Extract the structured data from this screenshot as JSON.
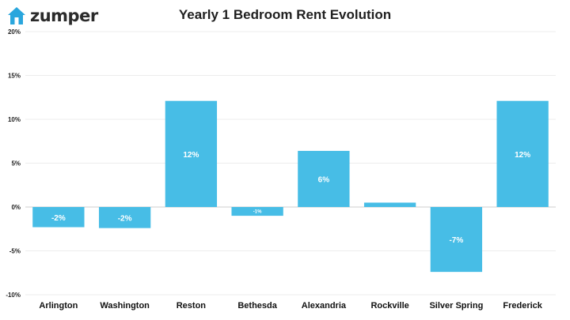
{
  "brand": {
    "name": "zumper",
    "icon": "house-icon",
    "color": "#2aa6dd"
  },
  "chart_data": {
    "type": "bar",
    "title": "Yearly 1 Bedroom Rent Evolution",
    "xlabel": "",
    "ylabel": "",
    "categories": [
      "Arlington",
      "Washington",
      "Reston",
      "Bethesda",
      "Alexandria",
      "Rockville",
      "Silver Spring",
      "Frederick"
    ],
    "values": [
      -2.3,
      -2.4,
      12.1,
      -1.0,
      6.4,
      0.5,
      -7.4,
      12.1
    ],
    "data_labels": [
      "-2%",
      "-2%",
      "12%",
      "-1%",
      "6%",
      "",
      "-7%",
      "12%"
    ],
    "ylim": [
      -10,
      20
    ],
    "yticks": [
      -10,
      -5,
      0,
      5,
      10,
      15,
      20
    ],
    "ytick_labels": [
      "-10%",
      "-5%",
      "0%",
      "5%",
      "10%",
      "15%",
      "20%"
    ],
    "grid": true,
    "bar_color": "#47bde6"
  }
}
